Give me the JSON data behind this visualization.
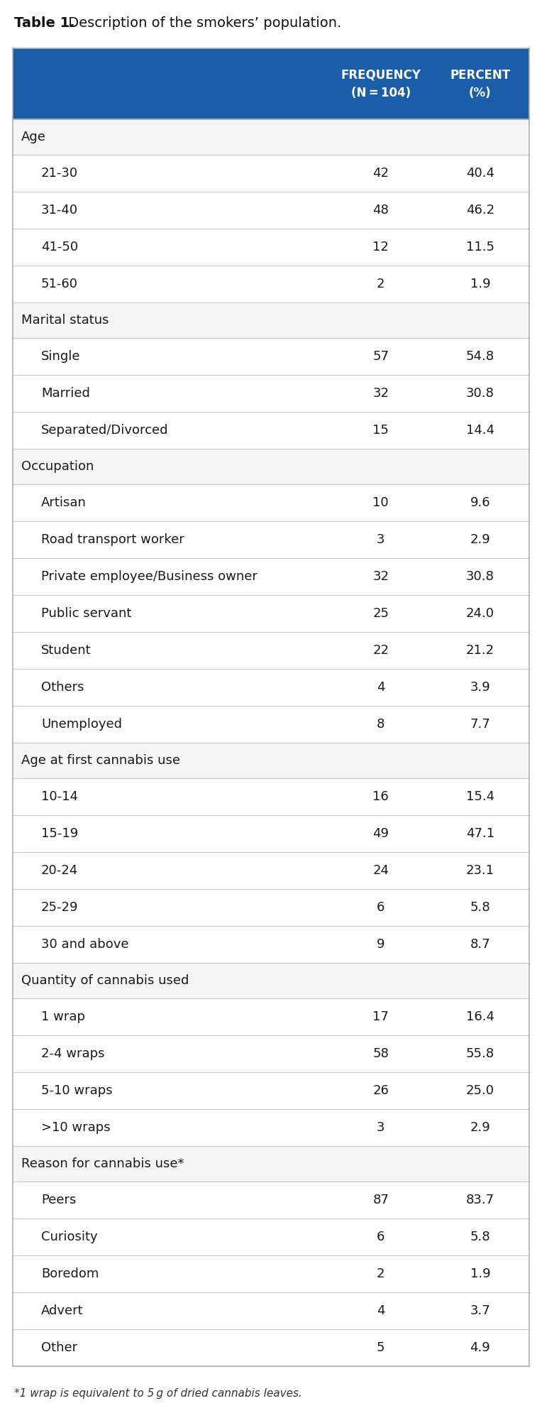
{
  "title_bold": "Table 1.",
  "title_rest": "  Description of the smokers’ population.",
  "header_bg": "#1a5da8",
  "header_text_color": "#ffffff",
  "footnote": "*1 wrap is equivalent to 5 g of dried cannabis leaves.",
  "rows": [
    {
      "label": "Age",
      "freq": "",
      "pct": "",
      "is_category": true
    },
    {
      "label": "21-30",
      "freq": "42",
      "pct": "40.4",
      "is_category": false
    },
    {
      "label": "31-40",
      "freq": "48",
      "pct": "46.2",
      "is_category": false
    },
    {
      "label": "41-50",
      "freq": "12",
      "pct": "11.5",
      "is_category": false
    },
    {
      "label": "51-60",
      "freq": "2",
      "pct": "1.9",
      "is_category": false
    },
    {
      "label": "Marital status",
      "freq": "",
      "pct": "",
      "is_category": true
    },
    {
      "label": "Single",
      "freq": "57",
      "pct": "54.8",
      "is_category": false
    },
    {
      "label": "Married",
      "freq": "32",
      "pct": "30.8",
      "is_category": false
    },
    {
      "label": "Separated/Divorced",
      "freq": "15",
      "pct": "14.4",
      "is_category": false
    },
    {
      "label": "Occupation",
      "freq": "",
      "pct": "",
      "is_category": true
    },
    {
      "label": "Artisan",
      "freq": "10",
      "pct": "9.6",
      "is_category": false
    },
    {
      "label": "Road transport worker",
      "freq": "3",
      "pct": "2.9",
      "is_category": false
    },
    {
      "label": "Private employee/Business owner",
      "freq": "32",
      "pct": "30.8",
      "is_category": false
    },
    {
      "label": "Public servant",
      "freq": "25",
      "pct": "24.0",
      "is_category": false
    },
    {
      "label": "Student",
      "freq": "22",
      "pct": "21.2",
      "is_category": false
    },
    {
      "label": "Others",
      "freq": "4",
      "pct": "3.9",
      "is_category": false
    },
    {
      "label": "Unemployed",
      "freq": "8",
      "pct": "7.7",
      "is_category": false
    },
    {
      "label": "Age at first cannabis use",
      "freq": "",
      "pct": "",
      "is_category": true
    },
    {
      "label": "10-14",
      "freq": "16",
      "pct": "15.4",
      "is_category": false
    },
    {
      "label": "15-19",
      "freq": "49",
      "pct": "47.1",
      "is_category": false
    },
    {
      "label": "20-24",
      "freq": "24",
      "pct": "23.1",
      "is_category": false
    },
    {
      "label": "25-29",
      "freq": "6",
      "pct": "5.8",
      "is_category": false
    },
    {
      "label": "30 and above",
      "freq": "9",
      "pct": "8.7",
      "is_category": false
    },
    {
      "label": "Quantity of cannabis used",
      "freq": "",
      "pct": "",
      "is_category": true
    },
    {
      "label": "1 wrap",
      "freq": "17",
      "pct": "16.4",
      "is_category": false
    },
    {
      "label": "2-4 wraps",
      "freq": "58",
      "pct": "55.8",
      "is_category": false
    },
    {
      "label": "5-10 wraps",
      "freq": "26",
      "pct": "25.0",
      "is_category": false
    },
    {
      "label": ">10 wraps",
      "freq": "3",
      "pct": "2.9",
      "is_category": false
    },
    {
      "label": "Reason for cannabis use*",
      "freq": "",
      "pct": "",
      "is_category": true
    },
    {
      "label": "Peers",
      "freq": "87",
      "pct": "83.7",
      "is_category": false
    },
    {
      "label": "Curiosity",
      "freq": "6",
      "pct": "5.8",
      "is_category": false
    },
    {
      "label": "Boredom",
      "freq": "2",
      "pct": "1.9",
      "is_category": false
    },
    {
      "label": "Advert",
      "freq": "4",
      "pct": "3.7",
      "is_category": false
    },
    {
      "label": "Other",
      "freq": "5",
      "pct": "4.9",
      "is_category": false
    }
  ],
  "border_color": "#b0b0b0",
  "divider_color": "#c8c8c8",
  "category_bg": "#f5f5f5",
  "data_bg": "#ffffff",
  "text_color": "#1a1a1a",
  "font_size": 13,
  "header_font_size": 12,
  "title_font_size": 14,
  "footnote_font_size": 11
}
